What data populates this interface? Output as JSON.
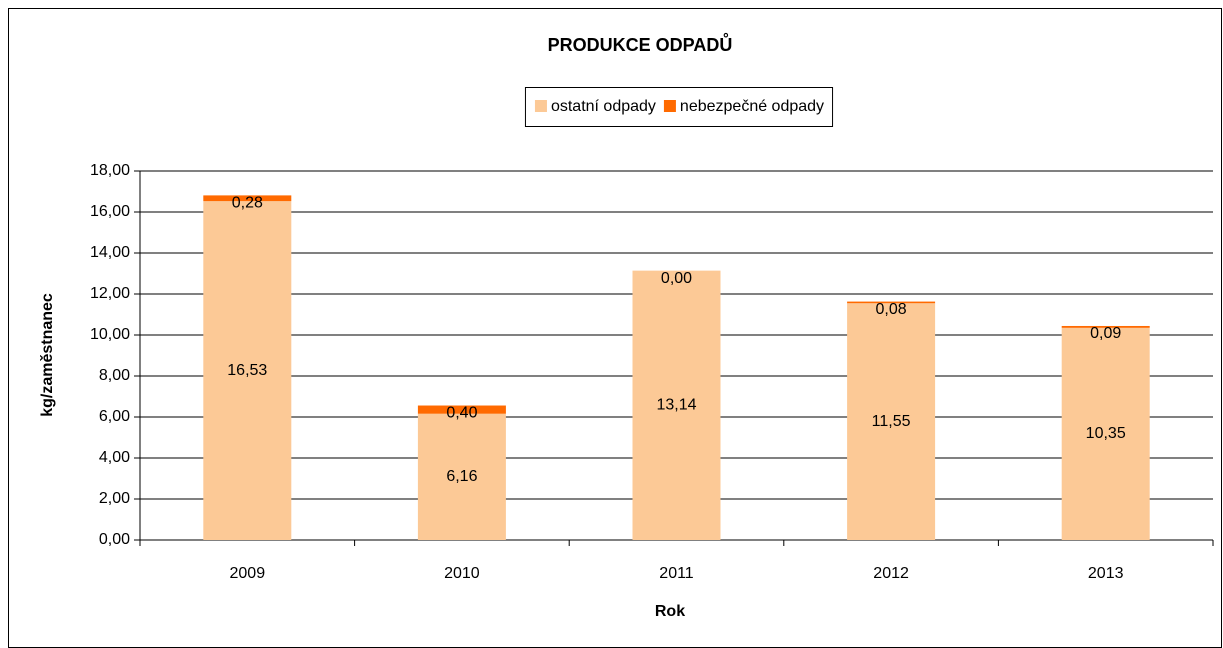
{
  "chart_data": {
    "type": "stacked_bar",
    "title": "PRODUKCE ODPADŮ",
    "xlabel": "Rok",
    "ylabel": "kg/zaměstnanec",
    "categories": [
      "2009",
      "2010",
      "2011",
      "2012",
      "2013"
    ],
    "series": [
      {
        "name": "ostatní odpady",
        "color": "#fcc996",
        "values": [
          16.53,
          6.16,
          13.14,
          11.55,
          10.35
        ],
        "value_labels": [
          "16,53",
          "6,16",
          "13,14",
          "11,55",
          "10,35"
        ]
      },
      {
        "name": "nebezpečné odpady",
        "color": "#ff6a00",
        "values": [
          0.28,
          0.4,
          0.0,
          0.08,
          0.09
        ],
        "value_labels": [
          "0,28",
          "0,40",
          "0,00",
          "0,08",
          "0,09"
        ]
      }
    ],
    "ylim": [
      0,
      18
    ],
    "yticks": [
      {
        "value": 0,
        "label": "0,00"
      },
      {
        "value": 2,
        "label": "2,00"
      },
      {
        "value": 4,
        "label": "4,00"
      },
      {
        "value": 6,
        "label": "6,00"
      },
      {
        "value": 8,
        "label": "8,00"
      },
      {
        "value": 10,
        "label": "10,00"
      },
      {
        "value": 12,
        "label": "12,00"
      },
      {
        "value": 14,
        "label": "14,00"
      },
      {
        "value": 16,
        "label": "16,00"
      },
      {
        "value": 18,
        "label": "18,00"
      }
    ],
    "grid": true,
    "legend": "top"
  }
}
